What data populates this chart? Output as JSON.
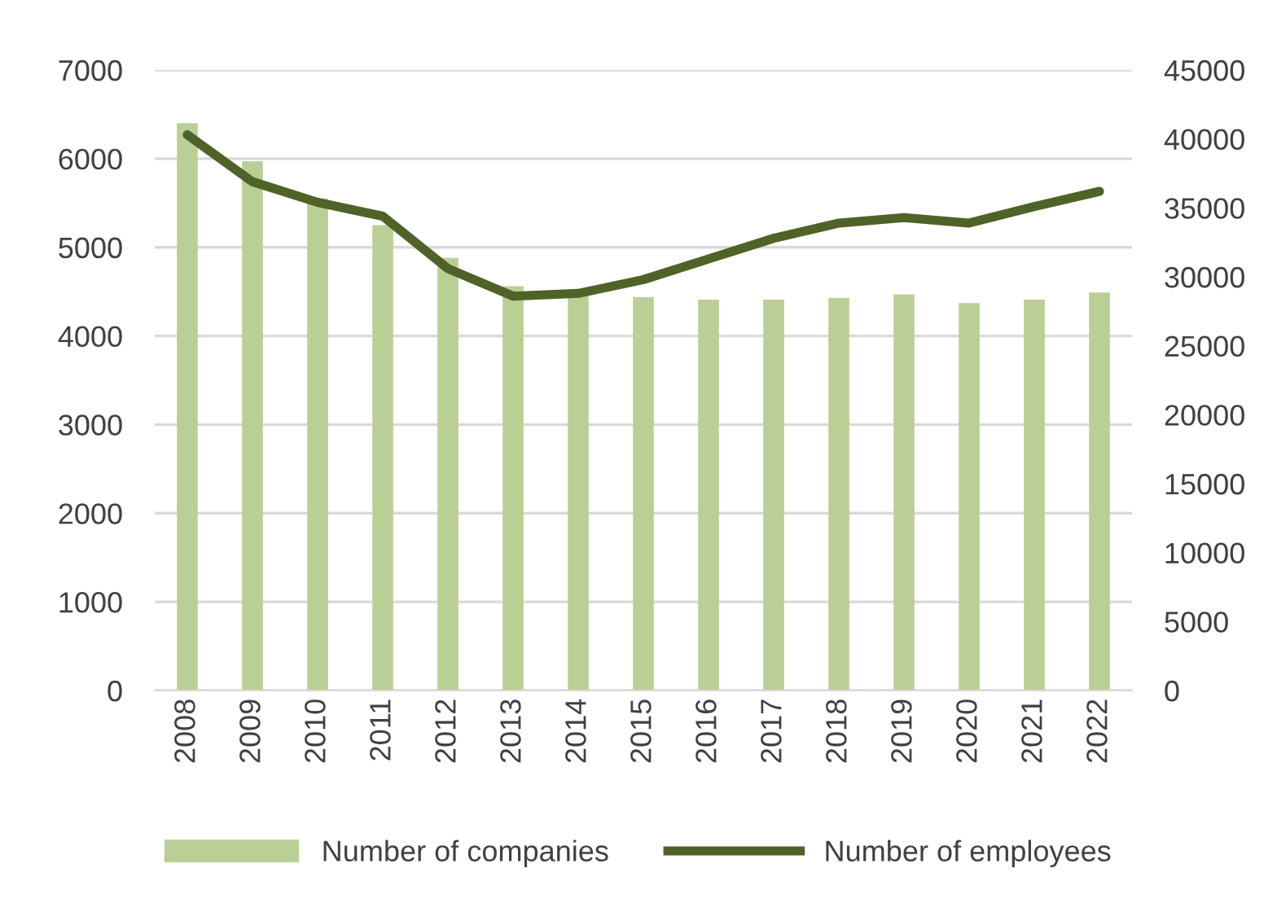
{
  "chart_data": {
    "type": "bar",
    "categories": [
      "2008",
      "2009",
      "2010",
      "2011",
      "2012",
      "2013",
      "2014",
      "2015",
      "2016",
      "2017",
      "2018",
      "2019",
      "2020",
      "2021",
      "2022"
    ],
    "series": [
      {
        "name": "Number of companies",
        "color": "#b9cf96",
        "values": [
          6400,
          5970,
          5550,
          5250,
          4880,
          4560,
          4500,
          4440,
          4410,
          4410,
          4430,
          4470,
          4370,
          4410,
          4490
        ]
      },
      {
        "name": "Number of employees",
        "type": "line",
        "axis": "y2",
        "color": "#4f6228",
        "values": [
          40300,
          36900,
          35400,
          34400,
          30600,
          28600,
          28800,
          29800,
          31300,
          32800,
          33900,
          34300,
          33900,
          35100,
          36200
        ]
      }
    ],
    "ylim": [
      0,
      7000
    ],
    "yticks": [
      0,
      1000,
      2000,
      3000,
      4000,
      5000,
      6000,
      7000
    ],
    "y2lim": [
      0,
      45000
    ],
    "y2ticks": [
      0,
      5000,
      10000,
      15000,
      20000,
      25000,
      30000,
      35000,
      40000,
      45000
    ],
    "grid": "y",
    "legend": "bottom",
    "marker": "none",
    "line_style": "solid"
  }
}
